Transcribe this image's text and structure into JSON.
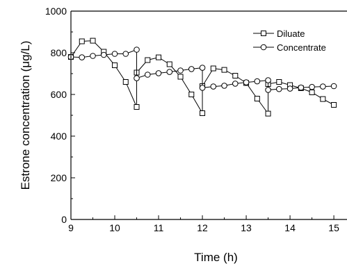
{
  "chart_data": {
    "type": "line",
    "xlabel": "Time (h)",
    "ylabel": "Estrone concentration (μg/L)",
    "xlim": [
      9,
      15.3
    ],
    "ylim": [
      0,
      1000
    ],
    "x_ticks": [
      "9",
      "10",
      "11",
      "12",
      "13",
      "14",
      "15"
    ],
    "y_ticks": [
      "0",
      "200",
      "400",
      "600",
      "800",
      "1000"
    ],
    "grid": false,
    "legend_position": "top-right",
    "series": [
      {
        "name": "Diluate",
        "marker": "square",
        "x": [
          9.0,
          9.25,
          9.5,
          9.75,
          10.0,
          10.25,
          10.5,
          10.5,
          10.75,
          11.0,
          11.25,
          11.5,
          11.75,
          12.0,
          12.0,
          12.25,
          12.5,
          12.75,
          13.0,
          13.25,
          13.5,
          13.5,
          13.75,
          14.0,
          14.25,
          14.5,
          14.75,
          15.0
        ],
        "y": [
          780,
          855,
          858,
          805,
          740,
          660,
          540,
          705,
          765,
          778,
          745,
          685,
          600,
          510,
          640,
          725,
          718,
          690,
          655,
          580,
          508,
          650,
          660,
          645,
          630,
          610,
          578,
          550
        ]
      },
      {
        "name": "Concentrate",
        "marker": "circle",
        "x": [
          9.0,
          9.25,
          9.5,
          9.75,
          10.0,
          10.25,
          10.5,
          10.5,
          10.75,
          11.0,
          11.25,
          11.5,
          11.75,
          12.0,
          12.0,
          12.25,
          12.5,
          12.75,
          13.0,
          13.25,
          13.5,
          13.5,
          13.75,
          14.0,
          14.25,
          14.5,
          14.75,
          15.0
        ],
        "y": [
          780,
          778,
          785,
          790,
          795,
          795,
          815,
          678,
          695,
          702,
          708,
          715,
          722,
          728,
          632,
          638,
          642,
          652,
          658,
          663,
          668,
          622,
          626,
          628,
          633,
          636,
          638,
          640
        ]
      }
    ]
  }
}
